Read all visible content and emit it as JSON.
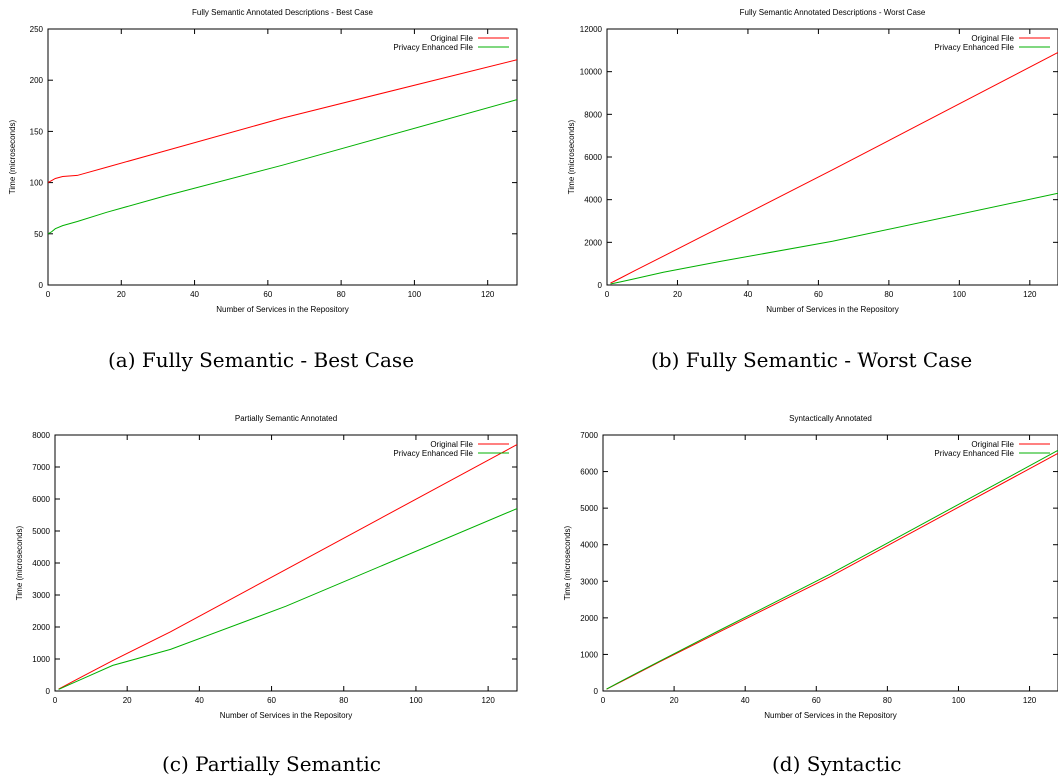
{
  "chart_data": [
    {
      "type": "line",
      "title": "Fully Semantic Annotated Descriptions - Best Case",
      "xlabel": "Number of Services in the Repository",
      "ylabel": "Time (microseconds)",
      "xlim": [
        0,
        128
      ],
      "ylim": [
        0,
        250
      ],
      "xticks": [
        0,
        20,
        40,
        60,
        80,
        100,
        120
      ],
      "yticks": [
        0,
        50,
        100,
        150,
        200,
        250
      ],
      "grid": false,
      "legend": "top-right",
      "caption": "(a)  Fully Semantic - Best Case",
      "series": [
        {
          "name": "Original File",
          "color": "#ff0000",
          "x": [
            0,
            1,
            2,
            4,
            8,
            16,
            32,
            64,
            128
          ],
          "y": [
            100,
            102,
            104,
            106,
            107,
            115,
            131,
            163,
            220
          ]
        },
        {
          "name": "Privacy Enhanced File",
          "color": "#00b000",
          "x": [
            0,
            1,
            2,
            4,
            8,
            16,
            32,
            64,
            128
          ],
          "y": [
            50,
            52,
            55,
            58,
            62,
            71,
            87,
            117,
            181
          ]
        }
      ]
    },
    {
      "type": "line",
      "title": "Fully Semantic Annotated Descriptions - Worst Case",
      "xlabel": "Number of Services in the Repository",
      "ylabel": "Time (microseconds)",
      "xlim": [
        0,
        128
      ],
      "ylim": [
        0,
        12000
      ],
      "xticks": [
        0,
        20,
        40,
        60,
        80,
        100,
        120
      ],
      "yticks": [
        0,
        2000,
        4000,
        6000,
        8000,
        10000,
        12000
      ],
      "grid": false,
      "legend": "top-right",
      "caption": "(b)  Fully Semantic - Worst Case",
      "series": [
        {
          "name": "Original File",
          "color": "#ff0000",
          "x": [
            1,
            2,
            4,
            8,
            16,
            32,
            64,
            128
          ],
          "y": [
            90,
            170,
            340,
            680,
            1350,
            2700,
            5400,
            10900
          ]
        },
        {
          "name": "Privacy Enhanced File",
          "color": "#00b000",
          "x": [
            1,
            2,
            4,
            8,
            16,
            32,
            64,
            128
          ],
          "y": [
            50,
            80,
            150,
            300,
            600,
            1100,
            2050,
            4300
          ]
        }
      ]
    },
    {
      "type": "line",
      "title": "Partially Semantic Annotated",
      "xlabel": "Number of Services in the Repository",
      "ylabel": "Time (microseconds)",
      "xlim": [
        0,
        128
      ],
      "ylim": [
        0,
        8000
      ],
      "xticks": [
        0,
        20,
        40,
        60,
        80,
        100,
        120
      ],
      "yticks": [
        0,
        1000,
        2000,
        3000,
        4000,
        5000,
        6000,
        7000,
        8000
      ],
      "grid": false,
      "legend": "top-right",
      "caption": "(c)  Partially Semantic",
      "series": [
        {
          "name": "Original File",
          "color": "#ff0000",
          "x": [
            1,
            2,
            4,
            8,
            16,
            32,
            64,
            128
          ],
          "y": [
            60,
            120,
            240,
            480,
            950,
            1850,
            3800,
            7700
          ]
        },
        {
          "name": "Privacy Enhanced File",
          "color": "#00b000",
          "x": [
            1,
            2,
            4,
            8,
            16,
            32,
            64,
            128
          ],
          "y": [
            50,
            100,
            200,
            400,
            800,
            1300,
            2650,
            5700
          ]
        }
      ]
    },
    {
      "type": "line",
      "title": "Syntactically Annotated",
      "xlabel": "Number of Services in the Repository",
      "ylabel": "Time (microseconds)",
      "xlim": [
        0,
        128
      ],
      "ylim": [
        0,
        7000
      ],
      "xticks": [
        0,
        20,
        40,
        60,
        80,
        100,
        120
      ],
      "yticks": [
        0,
        1000,
        2000,
        3000,
        4000,
        5000,
        6000,
        7000
      ],
      "grid": false,
      "legend": "top-right",
      "caption": "(d)  Syntactic",
      "series": [
        {
          "name": "Original File",
          "color": "#ff0000",
          "x": [
            1,
            2,
            4,
            8,
            16,
            32,
            64,
            128
          ],
          "y": [
            50,
            100,
            200,
            400,
            800,
            1580,
            3130,
            6500
          ]
        },
        {
          "name": "Privacy Enhanced File",
          "color": "#00b000",
          "x": [
            1,
            2,
            4,
            8,
            16,
            32,
            64,
            128
          ],
          "y": [
            52,
            105,
            210,
            415,
            820,
            1620,
            3200,
            6580
          ]
        }
      ]
    }
  ]
}
